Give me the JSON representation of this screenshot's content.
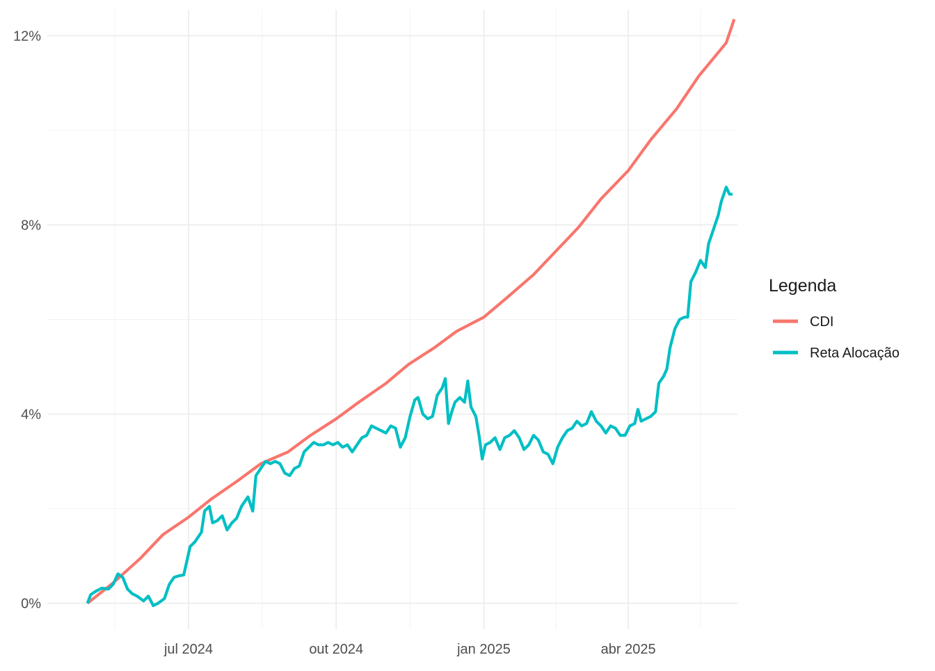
{
  "chart_data": {
    "type": "line",
    "title": "",
    "xlabel": "",
    "ylabel": "",
    "x_range": [
      "2024-04-04",
      "2025-06-08"
    ],
    "ylim": [
      -0.55,
      12.55
    ],
    "y_ticks": [
      {
        "value": 0,
        "label": "0%"
      },
      {
        "value": 4,
        "label": "4%"
      },
      {
        "value": 8,
        "label": "8%"
      },
      {
        "value": 12,
        "label": "12%"
      }
    ],
    "y_minor_ticks": [
      2,
      6,
      10
    ],
    "x_ticks": [
      {
        "value": "2024-07-01",
        "label": "jul 2024"
      },
      {
        "value": "2024-10-01",
        "label": "out 2024"
      },
      {
        "value": "2025-01-01",
        "label": "jan 2025"
      },
      {
        "value": "2025-04-01",
        "label": "abr 2025"
      }
    ],
    "x_minor_ticks": [
      "2024-05-16",
      "2024-08-16",
      "2024-11-16",
      "2025-02-15",
      "2025-05-16"
    ],
    "grid": true,
    "legend": {
      "title": "Legenda",
      "position": "right"
    },
    "series": [
      {
        "name": "CDI",
        "color": "#F8766D",
        "points": [
          [
            "2024-04-29",
            0.0
          ],
          [
            "2024-05-15",
            0.43
          ],
          [
            "2024-06-01",
            0.95
          ],
          [
            "2024-06-15",
            1.45
          ],
          [
            "2024-07-01",
            1.82
          ],
          [
            "2024-07-15",
            2.2
          ],
          [
            "2024-08-01",
            2.6
          ],
          [
            "2024-08-15",
            2.95
          ],
          [
            "2024-09-01",
            3.2
          ],
          [
            "2024-09-15",
            3.55
          ],
          [
            "2024-10-01",
            3.9
          ],
          [
            "2024-10-15",
            4.25
          ],
          [
            "2024-11-01",
            4.65
          ],
          [
            "2024-11-15",
            5.05
          ],
          [
            "2024-12-01",
            5.4
          ],
          [
            "2024-12-15",
            5.75
          ],
          [
            "2025-01-01",
            6.05
          ],
          [
            "2025-01-15",
            6.45
          ],
          [
            "2025-02-01",
            6.95
          ],
          [
            "2025-02-15",
            7.45
          ],
          [
            "2025-03-01",
            7.95
          ],
          [
            "2025-03-15",
            8.55
          ],
          [
            "2025-04-01",
            9.15
          ],
          [
            "2025-04-15",
            9.8
          ],
          [
            "2025-05-01",
            10.45
          ],
          [
            "2025-05-15",
            11.15
          ],
          [
            "2025-06-01",
            11.85
          ],
          [
            "2025-06-06",
            12.35
          ]
        ]
      },
      {
        "name": "Reta Alocação",
        "color": "#00BFC4",
        "points": [
          [
            "2024-04-29",
            0.0
          ],
          [
            "2024-05-01",
            0.18
          ],
          [
            "2024-05-04",
            0.25
          ],
          [
            "2024-05-08",
            0.32
          ],
          [
            "2024-05-12",
            0.3
          ],
          [
            "2024-05-15",
            0.4
          ],
          [
            "2024-05-18",
            0.62
          ],
          [
            "2024-05-21",
            0.55
          ],
          [
            "2024-05-24",
            0.3
          ],
          [
            "2024-05-27",
            0.2
          ],
          [
            "2024-05-30",
            0.15
          ],
          [
            "2024-06-03",
            0.05
          ],
          [
            "2024-06-06",
            0.15
          ],
          [
            "2024-06-09",
            -0.05
          ],
          [
            "2024-06-12",
            0.0
          ],
          [
            "2024-06-16",
            0.1
          ],
          [
            "2024-06-19",
            0.4
          ],
          [
            "2024-06-22",
            0.55
          ],
          [
            "2024-06-25",
            0.58
          ],
          [
            "2024-06-28",
            0.6
          ],
          [
            "2024-07-02",
            1.2
          ],
          [
            "2024-07-05",
            1.3
          ],
          [
            "2024-07-09",
            1.5
          ],
          [
            "2024-07-11",
            1.95
          ],
          [
            "2024-07-14",
            2.05
          ],
          [
            "2024-07-16",
            1.7
          ],
          [
            "2024-07-19",
            1.75
          ],
          [
            "2024-07-22",
            1.85
          ],
          [
            "2024-07-25",
            1.55
          ],
          [
            "2024-07-28",
            1.7
          ],
          [
            "2024-07-31",
            1.8
          ],
          [
            "2024-08-03",
            2.05
          ],
          [
            "2024-08-07",
            2.25
          ],
          [
            "2024-08-10",
            1.95
          ],
          [
            "2024-08-12",
            2.7
          ],
          [
            "2024-08-15",
            2.85
          ],
          [
            "2024-08-18",
            3.0
          ],
          [
            "2024-08-21",
            2.95
          ],
          [
            "2024-08-24",
            3.0
          ],
          [
            "2024-08-27",
            2.95
          ],
          [
            "2024-08-30",
            2.75
          ],
          [
            "2024-09-02",
            2.7
          ],
          [
            "2024-09-05",
            2.85
          ],
          [
            "2024-09-08",
            2.9
          ],
          [
            "2024-09-11",
            3.2
          ],
          [
            "2024-09-14",
            3.3
          ],
          [
            "2024-09-17",
            3.4
          ],
          [
            "2024-09-20",
            3.35
          ],
          [
            "2024-09-23",
            3.35
          ],
          [
            "2024-09-26",
            3.4
          ],
          [
            "2024-09-29",
            3.35
          ],
          [
            "2024-10-02",
            3.4
          ],
          [
            "2024-10-05",
            3.3
          ],
          [
            "2024-10-08",
            3.35
          ],
          [
            "2024-10-11",
            3.2
          ],
          [
            "2024-10-14",
            3.35
          ],
          [
            "2024-10-17",
            3.5
          ],
          [
            "2024-10-20",
            3.55
          ],
          [
            "2024-10-23",
            3.75
          ],
          [
            "2024-10-26",
            3.7
          ],
          [
            "2024-10-29",
            3.65
          ],
          [
            "2024-11-01",
            3.6
          ],
          [
            "2024-11-04",
            3.75
          ],
          [
            "2024-11-07",
            3.7
          ],
          [
            "2024-11-10",
            3.3
          ],
          [
            "2024-11-13",
            3.5
          ],
          [
            "2024-11-16",
            3.95
          ],
          [
            "2024-11-19",
            4.3
          ],
          [
            "2024-11-21",
            4.35
          ],
          [
            "2024-11-24",
            4.0
          ],
          [
            "2024-11-27",
            3.9
          ],
          [
            "2024-11-30",
            3.95
          ],
          [
            "2024-12-03",
            4.4
          ],
          [
            "2024-12-06",
            4.55
          ],
          [
            "2024-12-08",
            4.75
          ],
          [
            "2024-12-10",
            3.8
          ],
          [
            "2024-12-12",
            4.05
          ],
          [
            "2024-12-14",
            4.25
          ],
          [
            "2024-12-17",
            4.35
          ],
          [
            "2024-12-20",
            4.25
          ],
          [
            "2024-12-22",
            4.7
          ],
          [
            "2024-12-24",
            4.15
          ],
          [
            "2024-12-27",
            3.95
          ],
          [
            "2024-12-29",
            3.55
          ],
          [
            "2024-12-31",
            3.05
          ],
          [
            "2025-01-02",
            3.35
          ],
          [
            "2025-01-05",
            3.4
          ],
          [
            "2025-01-08",
            3.5
          ],
          [
            "2025-01-11",
            3.25
          ],
          [
            "2025-01-14",
            3.5
          ],
          [
            "2025-01-17",
            3.55
          ],
          [
            "2025-01-20",
            3.65
          ],
          [
            "2025-01-23",
            3.5
          ],
          [
            "2025-01-26",
            3.25
          ],
          [
            "2025-01-29",
            3.35
          ],
          [
            "2025-02-01",
            3.55
          ],
          [
            "2025-02-04",
            3.45
          ],
          [
            "2025-02-07",
            3.2
          ],
          [
            "2025-02-10",
            3.15
          ],
          [
            "2025-02-13",
            2.95
          ],
          [
            "2025-02-16",
            3.3
          ],
          [
            "2025-02-19",
            3.5
          ],
          [
            "2025-02-22",
            3.65
          ],
          [
            "2025-02-25",
            3.7
          ],
          [
            "2025-02-28",
            3.85
          ],
          [
            "2025-03-03",
            3.75
          ],
          [
            "2025-03-06",
            3.8
          ],
          [
            "2025-03-09",
            4.05
          ],
          [
            "2025-03-12",
            3.85
          ],
          [
            "2025-03-15",
            3.75
          ],
          [
            "2025-03-18",
            3.6
          ],
          [
            "2025-03-21",
            3.75
          ],
          [
            "2025-03-24",
            3.7
          ],
          [
            "2025-03-27",
            3.55
          ],
          [
            "2025-03-30",
            3.55
          ],
          [
            "2025-04-02",
            3.75
          ],
          [
            "2025-04-05",
            3.8
          ],
          [
            "2025-04-07",
            4.1
          ],
          [
            "2025-04-09",
            3.85
          ],
          [
            "2025-04-12",
            3.9
          ],
          [
            "2025-04-15",
            3.95
          ],
          [
            "2025-04-18",
            4.05
          ],
          [
            "2025-04-20",
            4.65
          ],
          [
            "2025-04-23",
            4.8
          ],
          [
            "2025-04-25",
            4.95
          ],
          [
            "2025-04-27",
            5.4
          ],
          [
            "2025-04-30",
            5.8
          ],
          [
            "2025-05-03",
            6.0
          ],
          [
            "2025-05-06",
            6.05
          ],
          [
            "2025-05-08",
            6.05
          ],
          [
            "2025-05-10",
            6.8
          ],
          [
            "2025-05-13",
            7.0
          ],
          [
            "2025-05-16",
            7.25
          ],
          [
            "2025-05-19",
            7.1
          ],
          [
            "2025-05-21",
            7.6
          ],
          [
            "2025-05-24",
            7.9
          ],
          [
            "2025-05-27",
            8.2
          ],
          [
            "2025-05-29",
            8.5
          ],
          [
            "2025-06-01",
            8.8
          ],
          [
            "2025-06-03",
            8.65
          ],
          [
            "2025-06-05",
            8.65
          ]
        ]
      }
    ]
  }
}
